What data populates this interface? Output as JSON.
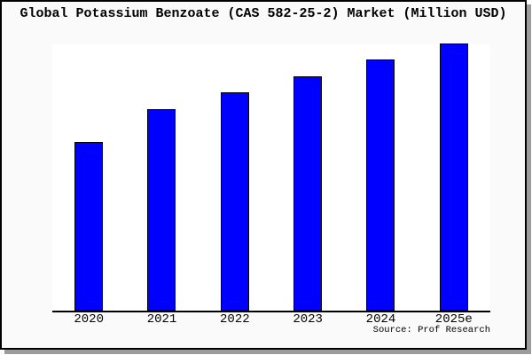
{
  "window": {
    "background_color": "#fafafa",
    "frame_border_color": "#000000",
    "frame_shadow_color": "#9c9c9c"
  },
  "chart_data": {
    "type": "bar",
    "title": "Global Potassium Benzoate (CAS 582-25-2) Market (Million USD)",
    "categories": [
      "2020",
      "2021",
      "2022",
      "2023",
      "2024",
      "2025e"
    ],
    "values": [
      62.7,
      75.2,
      81.5,
      87.7,
      93.8,
      100
    ],
    "values_note": "No y-axis scale shown in image; values are relative bar heights with 2025e = 100",
    "xlabel": "",
    "ylabel": "",
    "ylim": [
      0,
      100.3
    ],
    "grid": false,
    "legend": false,
    "bar_color": "#0000ff",
    "bar_border_color": "#000000",
    "plot_bg": "#ffffff",
    "axis_color": "#000000"
  },
  "footer": {
    "source_note": "Source: Prof Research"
  }
}
